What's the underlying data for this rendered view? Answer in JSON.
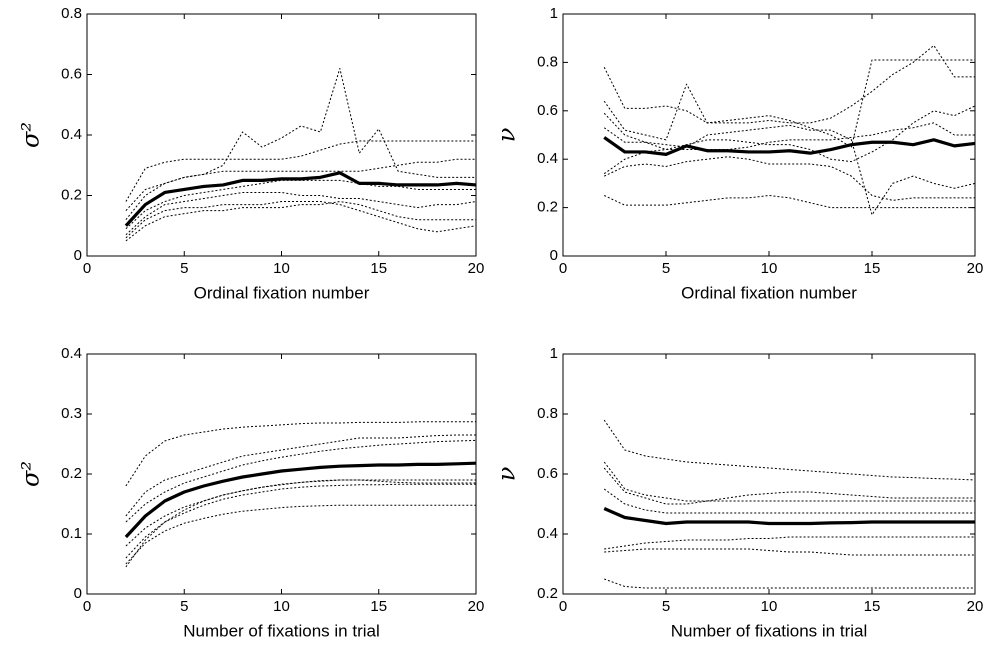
{
  "chart_data": [
    {
      "type": "line",
      "ylabel": "σ²",
      "xlabel": "Ordinal fixation number",
      "x": [
        2,
        3,
        4,
        5,
        6,
        7,
        8,
        9,
        10,
        11,
        12,
        13,
        14,
        15,
        16,
        17,
        18,
        19,
        20
      ],
      "xlim": [
        0,
        20
      ],
      "xticks": [
        0,
        5,
        10,
        15,
        20
      ],
      "ylim": [
        0,
        0.8
      ],
      "yticks": [
        0,
        0.2,
        0.4,
        0.6,
        0.8
      ],
      "box": true,
      "series": [
        {
          "color": "#000000",
          "line_style": "dotted",
          "values": [
            0.15,
            0.22,
            0.24,
            0.26,
            0.27,
            0.3,
            0.41,
            0.36,
            0.39,
            0.43,
            0.41,
            0.62,
            0.34,
            0.42,
            0.28,
            0.27,
            0.26,
            0.26,
            0.26
          ]
        },
        {
          "color": "#000000",
          "line_style": "dotted",
          "values": [
            0.18,
            0.29,
            0.31,
            0.32,
            0.32,
            0.32,
            0.32,
            0.32,
            0.32,
            0.33,
            0.35,
            0.37,
            0.38,
            0.38,
            0.38,
            0.38,
            0.38,
            0.38,
            0.38
          ]
        },
        {
          "color": "#000000",
          "line_style": "dotted",
          "values": [
            0.12,
            0.2,
            0.24,
            0.26,
            0.27,
            0.28,
            0.28,
            0.28,
            0.28,
            0.28,
            0.28,
            0.28,
            0.28,
            0.29,
            0.3,
            0.31,
            0.31,
            0.32,
            0.32
          ]
        },
        {
          "color": "#000000",
          "line_style": "dotted",
          "values": [
            0.09,
            0.15,
            0.18,
            0.2,
            0.21,
            0.22,
            0.23,
            0.24,
            0.25,
            0.25,
            0.25,
            0.25,
            0.24,
            0.23,
            0.23,
            0.22,
            0.22,
            0.22,
            0.22
          ]
        },
        {
          "color": "#000000",
          "line_style": "dotted",
          "values": [
            0.07,
            0.13,
            0.17,
            0.18,
            0.19,
            0.2,
            0.21,
            0.21,
            0.21,
            0.2,
            0.2,
            0.19,
            0.19,
            0.18,
            0.17,
            0.16,
            0.17,
            0.17,
            0.18
          ]
        },
        {
          "color": "#000000",
          "line_style": "dotted",
          "values": [
            0.06,
            0.12,
            0.15,
            0.16,
            0.16,
            0.17,
            0.17,
            0.17,
            0.18,
            0.18,
            0.18,
            0.17,
            0.15,
            0.13,
            0.11,
            0.09,
            0.08,
            0.09,
            0.1
          ]
        },
        {
          "color": "#000000",
          "line_style": "dotted",
          "values": [
            0.05,
            0.1,
            0.13,
            0.14,
            0.15,
            0.15,
            0.16,
            0.16,
            0.16,
            0.17,
            0.17,
            0.18,
            0.17,
            0.15,
            0.13,
            0.12,
            0.12,
            0.12,
            0.12
          ]
        },
        {
          "color": "#000000",
          "line_style": "solid",
          "values": [
            0.1,
            0.17,
            0.21,
            0.22,
            0.23,
            0.235,
            0.25,
            0.25,
            0.255,
            0.255,
            0.26,
            0.275,
            0.24,
            0.24,
            0.235,
            0.235,
            0.235,
            0.24,
            0.235
          ]
        }
      ]
    },
    {
      "type": "line",
      "ylabel": "ν",
      "xlabel": "Ordinal fixation number",
      "x": [
        2,
        3,
        4,
        5,
        6,
        7,
        8,
        9,
        10,
        11,
        12,
        13,
        14,
        15,
        16,
        17,
        18,
        19,
        20
      ],
      "xlim": [
        0,
        20
      ],
      "xticks": [
        0,
        5,
        10,
        15,
        20
      ],
      "ylim": [
        0,
        1
      ],
      "yticks": [
        0,
        0.2,
        0.4,
        0.6,
        0.8,
        1
      ],
      "box": true,
      "series": [
        {
          "color": "#000000",
          "line_style": "dotted",
          "values": [
            0.78,
            0.61,
            0.61,
            0.62,
            0.6,
            0.55,
            0.55,
            0.55,
            0.56,
            0.55,
            0.55,
            0.57,
            0.62,
            0.68,
            0.75,
            0.8,
            0.87,
            0.74,
            0.74
          ]
        },
        {
          "color": "#000000",
          "line_style": "dotted",
          "values": [
            0.64,
            0.52,
            0.5,
            0.48,
            0.71,
            0.55,
            0.56,
            0.57,
            0.58,
            0.56,
            0.53,
            0.5,
            0.45,
            0.81,
            0.81,
            0.81,
            0.81,
            0.81,
            0.81
          ]
        },
        {
          "color": "#000000",
          "line_style": "dotted",
          "values": [
            0.59,
            0.5,
            0.47,
            0.46,
            0.45,
            0.5,
            0.51,
            0.52,
            0.53,
            0.54,
            0.52,
            0.52,
            0.48,
            0.17,
            0.3,
            0.33,
            0.3,
            0.28,
            0.3
          ]
        },
        {
          "color": "#000000",
          "line_style": "dotted",
          "values": [
            0.34,
            0.4,
            0.43,
            0.44,
            0.46,
            0.48,
            0.48,
            0.47,
            0.46,
            0.46,
            0.44,
            0.4,
            0.39,
            0.43,
            0.48,
            0.55,
            0.6,
            0.58,
            0.62
          ]
        },
        {
          "color": "#000000",
          "line_style": "dotted",
          "values": [
            0.33,
            0.37,
            0.38,
            0.37,
            0.39,
            0.4,
            0.41,
            0.4,
            0.38,
            0.38,
            0.38,
            0.37,
            0.33,
            0.25,
            0.23,
            0.24,
            0.24,
            0.24,
            0.24
          ]
        },
        {
          "color": "#000000",
          "line_style": "dotted",
          "values": [
            0.25,
            0.21,
            0.21,
            0.21,
            0.22,
            0.23,
            0.24,
            0.24,
            0.25,
            0.24,
            0.22,
            0.2,
            0.2,
            0.2,
            0.2,
            0.2,
            0.2,
            0.2,
            0.2
          ]
        },
        {
          "color": "#000000",
          "line_style": "dotted",
          "values": [
            0.53,
            0.47,
            0.47,
            0.44,
            0.44,
            0.44,
            0.44,
            0.45,
            0.47,
            0.48,
            0.48,
            0.48,
            0.49,
            0.5,
            0.52,
            0.53,
            0.55,
            0.5,
            0.5
          ]
        },
        {
          "color": "#000000",
          "line_style": "solid",
          "values": [
            0.49,
            0.43,
            0.43,
            0.42,
            0.455,
            0.435,
            0.435,
            0.43,
            0.43,
            0.435,
            0.425,
            0.44,
            0.46,
            0.47,
            0.47,
            0.46,
            0.48,
            0.455,
            0.465
          ]
        }
      ]
    },
    {
      "type": "line",
      "ylabel": "σ²",
      "xlabel": "Number of fixations in trial",
      "x": [
        2,
        3,
        4,
        5,
        6,
        7,
        8,
        9,
        10,
        11,
        12,
        13,
        14,
        15,
        16,
        17,
        18,
        19,
        20
      ],
      "xlim": [
        0,
        20
      ],
      "xticks": [
        0,
        5,
        10,
        15,
        20
      ],
      "ylim": [
        0,
        0.4
      ],
      "yticks": [
        0,
        0.1,
        0.2,
        0.3,
        0.4
      ],
      "box": true,
      "series": [
        {
          "color": "#000000",
          "line_style": "dotted",
          "values": [
            0.18,
            0.23,
            0.255,
            0.265,
            0.27,
            0.275,
            0.278,
            0.28,
            0.282,
            0.284,
            0.285,
            0.285,
            0.286,
            0.286,
            0.286,
            0.287,
            0.287,
            0.287,
            0.287
          ]
        },
        {
          "color": "#000000",
          "line_style": "dotted",
          "values": [
            0.13,
            0.17,
            0.19,
            0.2,
            0.21,
            0.22,
            0.23,
            0.235,
            0.24,
            0.245,
            0.25,
            0.255,
            0.26,
            0.26,
            0.26,
            0.262,
            0.264,
            0.265,
            0.265
          ]
        },
        {
          "color": "#000000",
          "line_style": "dotted",
          "values": [
            0.12,
            0.15,
            0.17,
            0.185,
            0.195,
            0.205,
            0.215,
            0.222,
            0.228,
            0.233,
            0.238,
            0.242,
            0.245,
            0.248,
            0.25,
            0.252,
            0.254,
            0.255,
            0.256
          ]
        },
        {
          "color": "#000000",
          "line_style": "dotted",
          "values": [
            0.08,
            0.11,
            0.13,
            0.145,
            0.155,
            0.165,
            0.172,
            0.178,
            0.182,
            0.186,
            0.188,
            0.19,
            0.19,
            0.19,
            0.19,
            0.19,
            0.19,
            0.19,
            0.19
          ]
        },
        {
          "color": "#000000",
          "line_style": "dotted",
          "values": [
            0.06,
            0.095,
            0.12,
            0.135,
            0.148,
            0.158,
            0.165,
            0.17,
            0.175,
            0.178,
            0.18,
            0.181,
            0.182,
            0.182,
            0.183,
            0.183,
            0.183,
            0.183,
            0.183
          ]
        },
        {
          "color": "#000000",
          "line_style": "dotted",
          "values": [
            0.05,
            0.085,
            0.105,
            0.118,
            0.126,
            0.133,
            0.138,
            0.141,
            0.144,
            0.146,
            0.147,
            0.148,
            0.148,
            0.148,
            0.148,
            0.148,
            0.148,
            0.148,
            0.148
          ]
        },
        {
          "color": "#000000",
          "line_style": "dotted",
          "values": [
            0.045,
            0.09,
            0.12,
            0.14,
            0.155,
            0.165,
            0.172,
            0.178,
            0.183,
            0.186,
            0.189,
            0.19,
            0.19,
            0.188,
            0.186,
            0.185,
            0.185,
            0.185,
            0.185
          ]
        },
        {
          "color": "#000000",
          "line_style": "solid",
          "values": [
            0.095,
            0.13,
            0.155,
            0.17,
            0.18,
            0.188,
            0.195,
            0.2,
            0.205,
            0.208,
            0.211,
            0.213,
            0.214,
            0.215,
            0.215,
            0.216,
            0.216,
            0.217,
            0.218
          ]
        }
      ]
    },
    {
      "type": "line",
      "ylabel": "ν",
      "xlabel": "Number of fixations in trial",
      "x": [
        2,
        3,
        4,
        5,
        6,
        7,
        8,
        9,
        10,
        11,
        12,
        13,
        14,
        15,
        16,
        17,
        18,
        19,
        20
      ],
      "xlim": [
        0,
        20
      ],
      "xticks": [
        0,
        5,
        10,
        15,
        20
      ],
      "ylim": [
        0.2,
        1
      ],
      "yticks": [
        0.2,
        0.4,
        0.6,
        0.8,
        1
      ],
      "box": true,
      "series": [
        {
          "color": "#000000",
          "line_style": "dotted",
          "values": [
            0.78,
            0.68,
            0.66,
            0.65,
            0.64,
            0.635,
            0.63,
            0.625,
            0.62,
            0.615,
            0.61,
            0.605,
            0.6,
            0.595,
            0.59,
            0.588,
            0.585,
            0.583,
            0.58
          ]
        },
        {
          "color": "#000000",
          "line_style": "dotted",
          "values": [
            0.64,
            0.55,
            0.53,
            0.52,
            0.51,
            0.51,
            0.51,
            0.51,
            0.51,
            0.51,
            0.51,
            0.51,
            0.51,
            0.51,
            0.51,
            0.51,
            0.51,
            0.51,
            0.51
          ]
        },
        {
          "color": "#000000",
          "line_style": "dotted",
          "values": [
            0.62,
            0.54,
            0.52,
            0.5,
            0.5,
            0.51,
            0.52,
            0.53,
            0.535,
            0.54,
            0.54,
            0.535,
            0.53,
            0.525,
            0.52,
            0.52,
            0.52,
            0.52,
            0.52
          ]
        },
        {
          "color": "#000000",
          "line_style": "dotted",
          "values": [
            0.55,
            0.5,
            0.48,
            0.47,
            0.47,
            0.47,
            0.47,
            0.47,
            0.47,
            0.47,
            0.47,
            0.47,
            0.47,
            0.47,
            0.47,
            0.47,
            0.47,
            0.47,
            0.47
          ]
        },
        {
          "color": "#000000",
          "line_style": "dotted",
          "values": [
            0.35,
            0.36,
            0.37,
            0.375,
            0.38,
            0.38,
            0.38,
            0.385,
            0.385,
            0.39,
            0.39,
            0.39,
            0.39,
            0.39,
            0.39,
            0.39,
            0.39,
            0.39,
            0.39
          ]
        },
        {
          "color": "#000000",
          "line_style": "dotted",
          "values": [
            0.34,
            0.345,
            0.35,
            0.35,
            0.35,
            0.35,
            0.35,
            0.35,
            0.345,
            0.34,
            0.34,
            0.335,
            0.33,
            0.33,
            0.33,
            0.33,
            0.33,
            0.33,
            0.33
          ]
        },
        {
          "color": "#000000",
          "line_style": "dotted",
          "values": [
            0.25,
            0.225,
            0.22,
            0.22,
            0.22,
            0.22,
            0.22,
            0.22,
            0.22,
            0.22,
            0.22,
            0.22,
            0.22,
            0.22,
            0.22,
            0.22,
            0.22,
            0.22,
            0.22
          ]
        },
        {
          "color": "#000000",
          "line_style": "solid",
          "values": [
            0.485,
            0.455,
            0.445,
            0.435,
            0.44,
            0.44,
            0.44,
            0.44,
            0.435,
            0.435,
            0.435,
            0.437,
            0.438,
            0.44,
            0.44,
            0.44,
            0.44,
            0.44,
            0.44
          ]
        }
      ]
    }
  ]
}
